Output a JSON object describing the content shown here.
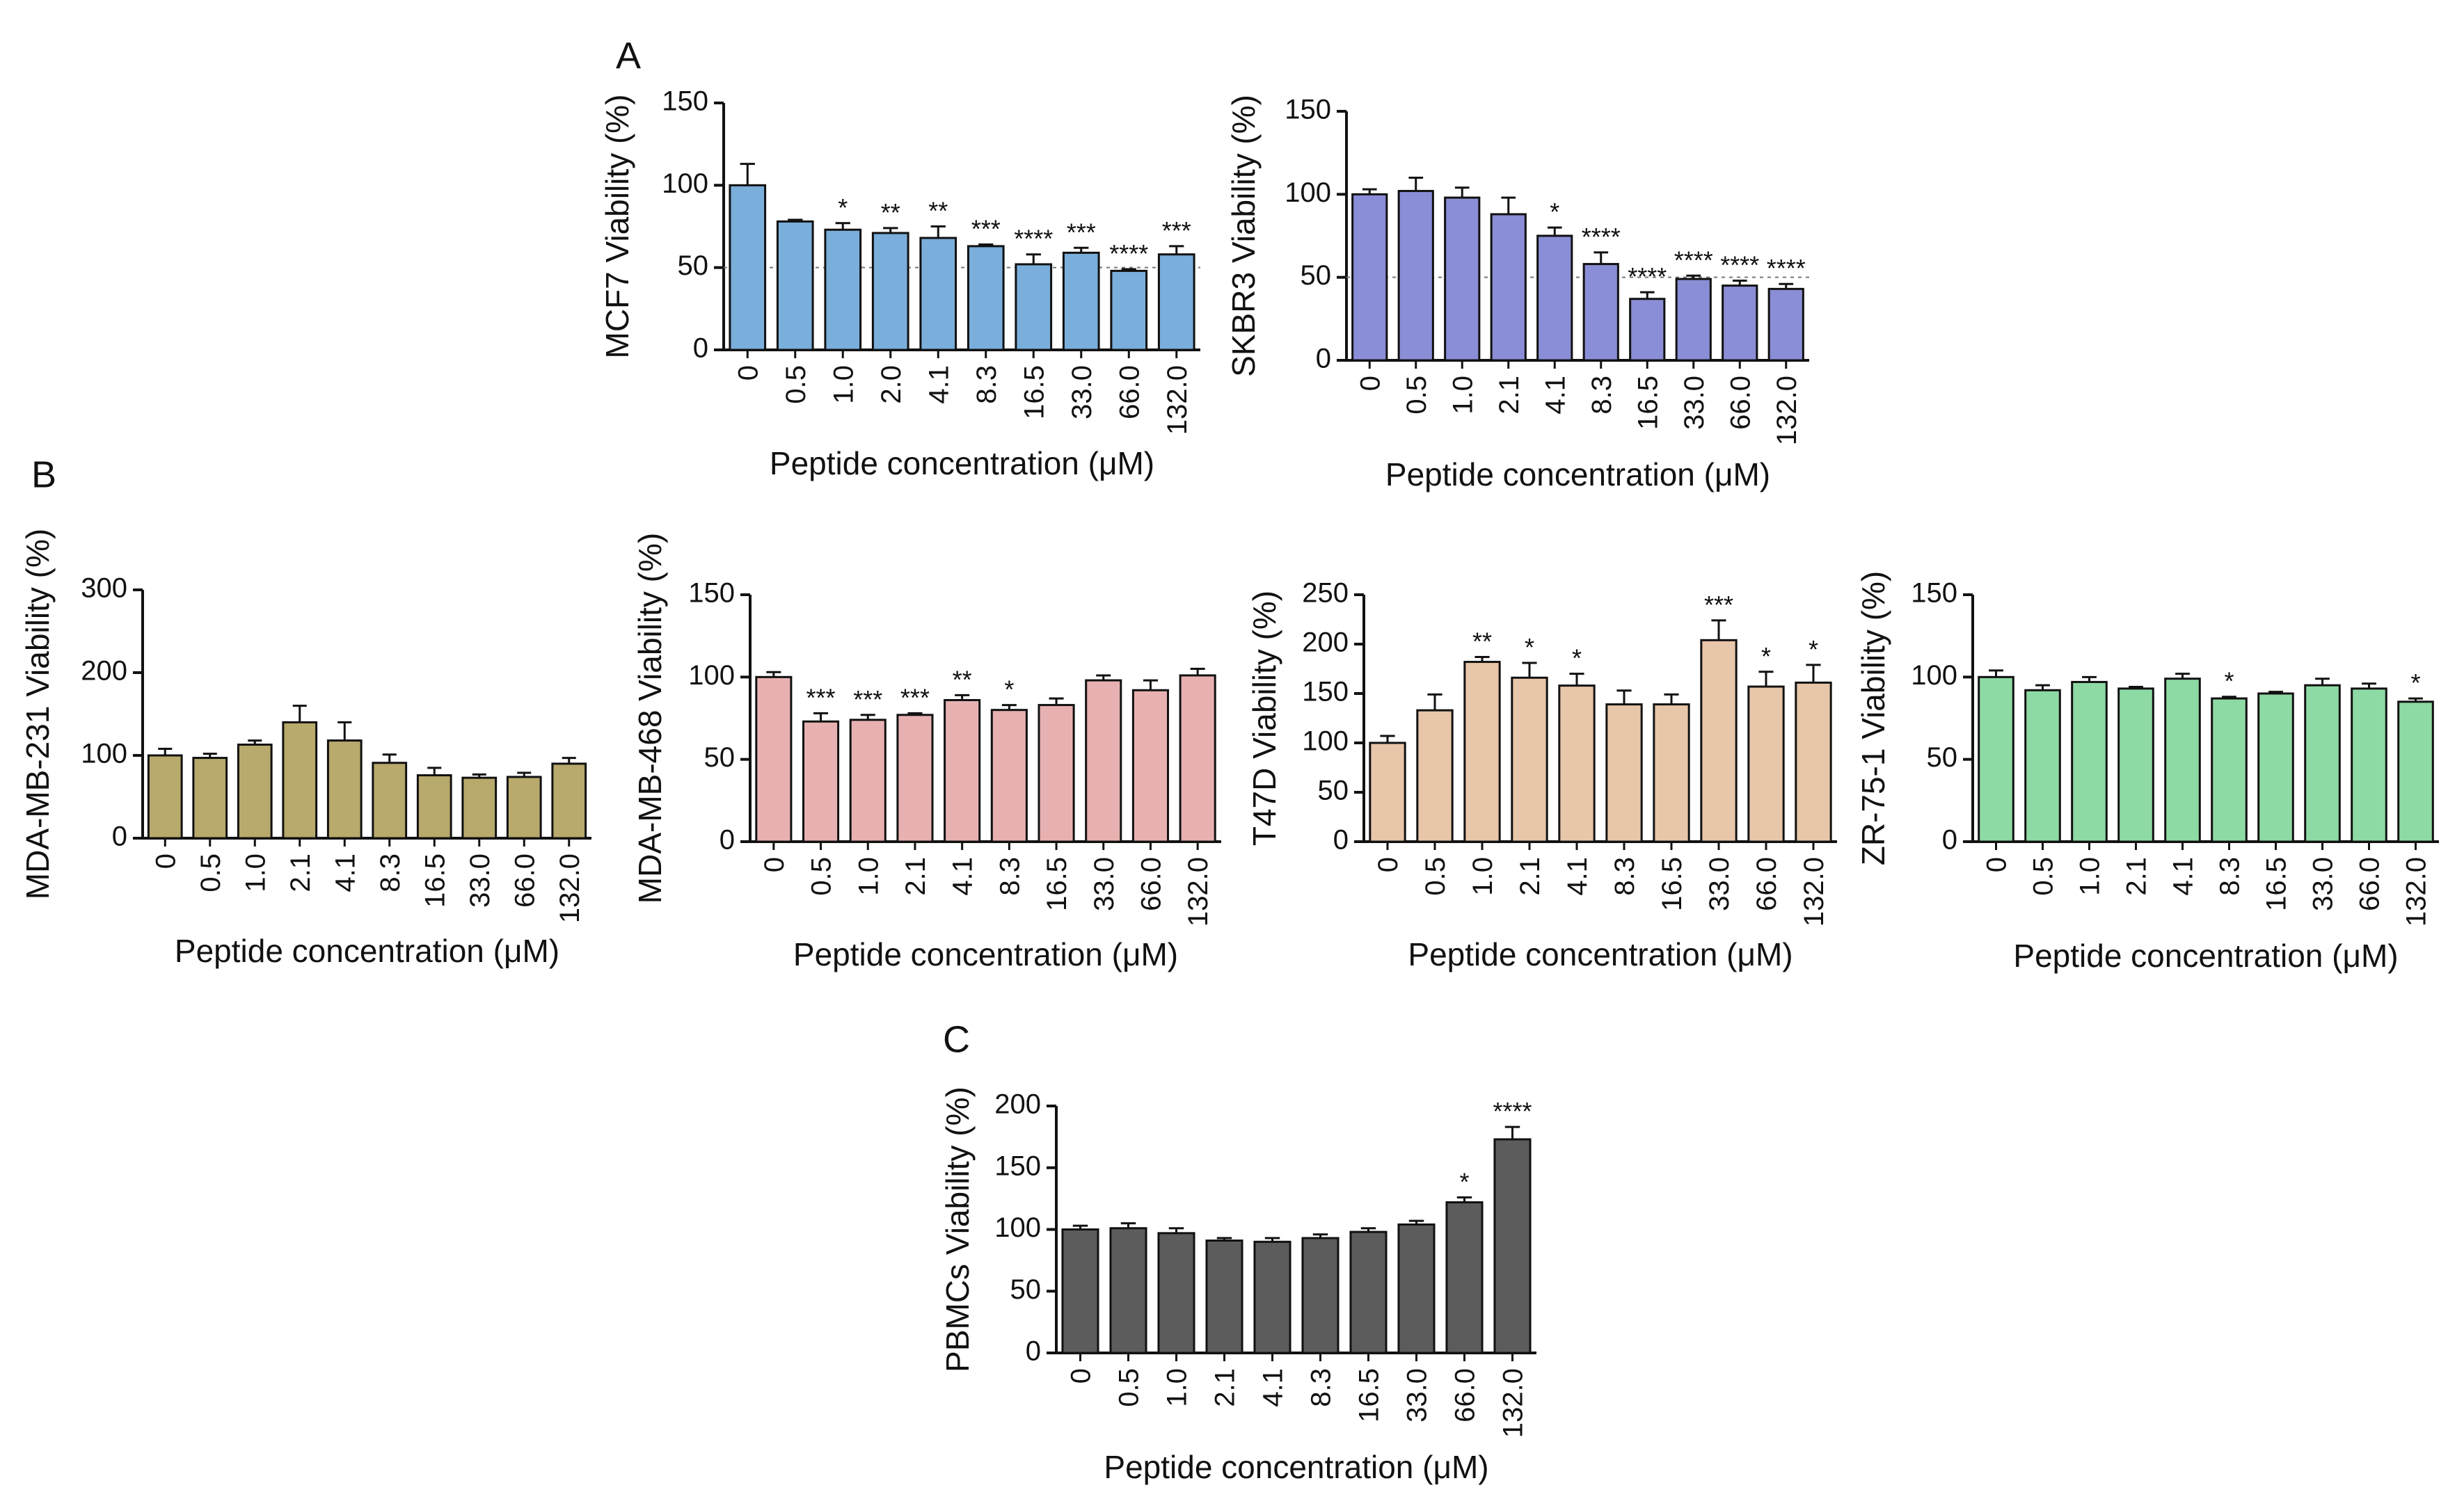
{
  "chart_data": [
    {
      "type": "bar",
      "panel": "A",
      "ylabel": "MCF7 Viability (%)",
      "xlabel": "Peptide concentration (μM)",
      "categories": [
        "0",
        "0.5",
        "1.0",
        "2.0",
        "4.1",
        "8.3",
        "16.5",
        "33.0",
        "66.0",
        "132.0"
      ],
      "values": [
        100,
        78,
        73,
        71,
        68,
        63,
        52,
        59,
        48,
        58
      ],
      "errors": [
        13,
        1,
        4,
        3,
        7,
        1,
        6,
        3,
        1,
        5
      ],
      "significance": [
        "",
        "",
        "*",
        "**",
        "**",
        "***",
        "****",
        "***",
        "****",
        "***"
      ],
      "ylim": [
        0,
        150
      ],
      "yticks": [
        "0",
        "50",
        "100",
        "150"
      ],
      "reference_line": 50,
      "color": "#7aaedb"
    },
    {
      "type": "bar",
      "panel": "",
      "ylabel": "SKBR3 Viability (%)",
      "xlabel": "Peptide concentration (μM)",
      "categories": [
        "0",
        "0.5",
        "1.0",
        "2.1",
        "4.1",
        "8.3",
        "16.5",
        "33.0",
        "66.0",
        "132.0"
      ],
      "values": [
        100,
        102,
        98,
        88,
        75,
        58,
        37,
        49,
        45,
        43
      ],
      "errors": [
        3,
        8,
        6,
        10,
        5,
        7,
        4,
        2,
        3,
        3
      ],
      "significance": [
        "",
        "",
        "",
        "",
        "*",
        "****",
        "****",
        "****",
        "****",
        "****"
      ],
      "ylim": [
        0,
        150
      ],
      "yticks": [
        "0",
        "50",
        "100",
        "150"
      ],
      "reference_line": 50,
      "color": "#8a8ed6"
    },
    {
      "type": "bar",
      "panel": "B",
      "ylabel": "MDA-MB-231 Viability (%)",
      "xlabel": "Peptide concentration (μM)",
      "categories": [
        "0",
        "0.5",
        "1.0",
        "2.1",
        "4.1",
        "8.3",
        "16.5",
        "33.0",
        "66.0",
        "132.0"
      ],
      "values": [
        100,
        97,
        113,
        140,
        118,
        91,
        76,
        73,
        74,
        90
      ],
      "errors": [
        8,
        5,
        5,
        20,
        22,
        10,
        9,
        4,
        5,
        7
      ],
      "significance": [
        "",
        "",
        "",
        "",
        "",
        "",
        "",
        "",
        "",
        ""
      ],
      "ylim": [
        0,
        300
      ],
      "yticks": [
        "0",
        "100",
        "200",
        "300"
      ],
      "color": "#b8a96c"
    },
    {
      "type": "bar",
      "panel": "",
      "ylabel": "MDA-MB-468 Viability (%)",
      "xlabel": "Peptide concentration (μM)",
      "categories": [
        "0",
        "0.5",
        "1.0",
        "2.1",
        "4.1",
        "8.3",
        "16.5",
        "33.0",
        "66.0",
        "132.0"
      ],
      "values": [
        100,
        73,
        74,
        77,
        86,
        80,
        83,
        98,
        92,
        101
      ],
      "errors": [
        3,
        5,
        3,
        1,
        3,
        3,
        4,
        3,
        6,
        4
      ],
      "significance": [
        "",
        "***",
        "***",
        "***",
        "**",
        "*",
        "",
        "",
        "",
        ""
      ],
      "ylim": [
        0,
        150
      ],
      "yticks": [
        "0",
        "50",
        "100",
        "150"
      ],
      "color": "#e8b1b1"
    },
    {
      "type": "bar",
      "panel": "",
      "ylabel": "T47D Viability (%)",
      "xlabel": "Peptide concentration (μM)",
      "categories": [
        "0",
        "0.5",
        "1.0",
        "2.1",
        "4.1",
        "8.3",
        "16.5",
        "33.0",
        "66.0",
        "132.0"
      ],
      "values": [
        100,
        133,
        182,
        166,
        158,
        139,
        139,
        204,
        157,
        161
      ],
      "errors": [
        7,
        16,
        5,
        15,
        12,
        14,
        10,
        20,
        15,
        18
      ],
      "significance": [
        "",
        "",
        "**",
        "*",
        "*",
        "",
        "",
        "***",
        "*",
        "*"
      ],
      "ylim": [
        0,
        250
      ],
      "yticks": [
        "0",
        "50",
        "100",
        "150",
        "200",
        "250"
      ],
      "color": "#e8c6a9"
    },
    {
      "type": "bar",
      "panel": "",
      "ylabel": "ZR-75-1 Viability (%)",
      "xlabel": "Peptide concentration (μM)",
      "categories": [
        "0",
        "0.5",
        "1.0",
        "2.1",
        "4.1",
        "8.3",
        "16.5",
        "33.0",
        "66.0",
        "132.0"
      ],
      "values": [
        100,
        92,
        97,
        93,
        99,
        87,
        90,
        95,
        93,
        85
      ],
      "errors": [
        4,
        3,
        3,
        1,
        3,
        1,
        1,
        4,
        3,
        2
      ],
      "significance": [
        "",
        "",
        "",
        "",
        "",
        "*",
        "",
        "",
        "",
        "*"
      ],
      "ylim": [
        0,
        150
      ],
      "yticks": [
        "0",
        "50",
        "100",
        "150"
      ],
      "color": "#8edaa4"
    },
    {
      "type": "bar",
      "panel": "C",
      "ylabel": "PBMCs Viability (%)",
      "xlabel": "Peptide concentration (μM)",
      "categories": [
        "0",
        "0.5",
        "1.0",
        "2.1",
        "4.1",
        "8.3",
        "16.5",
        "33.0",
        "66.0",
        "132.0"
      ],
      "values": [
        100,
        101,
        97,
        91,
        90,
        93,
        98,
        104,
        122,
        173
      ],
      "errors": [
        3,
        4,
        4,
        2,
        3,
        3,
        3,
        3,
        4,
        10
      ],
      "significance": [
        "",
        "",
        "",
        "",
        "",
        "",
        "",
        "",
        "*",
        "****"
      ],
      "ylim": [
        0,
        200
      ],
      "yticks": [
        "0",
        "50",
        "100",
        "150",
        "200"
      ],
      "color": "#5c5c5c"
    }
  ]
}
